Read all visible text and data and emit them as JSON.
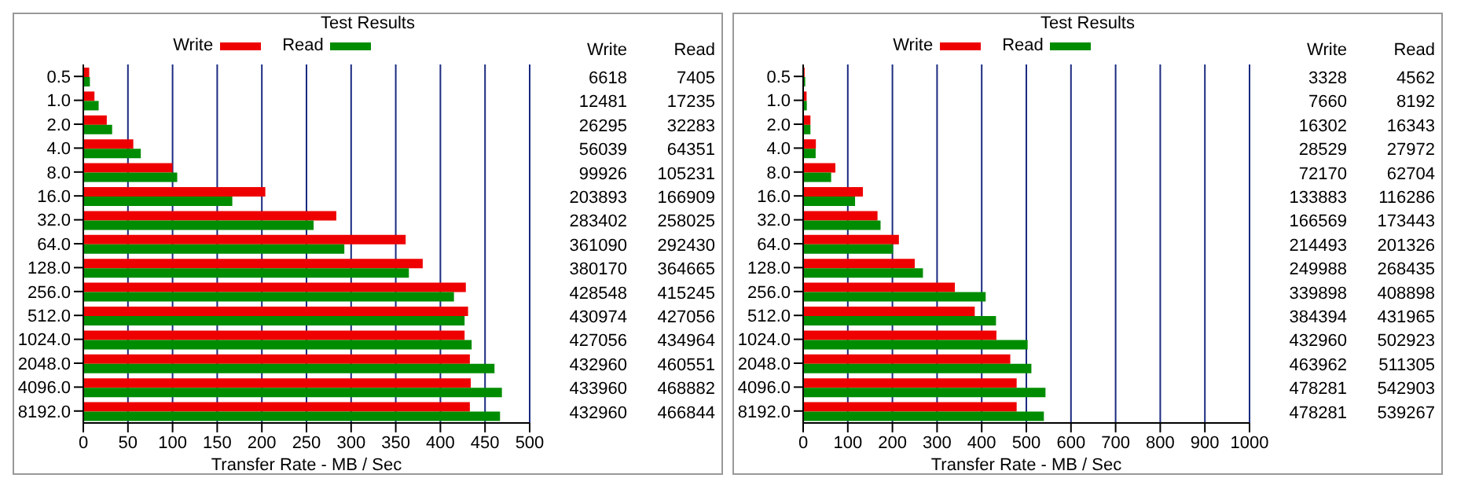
{
  "chart_data": [
    {
      "type": "bar",
      "orientation": "horizontal",
      "title": "Test Results",
      "xlabel": "Transfer Rate - MB / Sec",
      "categories": [
        "0.5",
        "1.0",
        "2.0",
        "4.0",
        "8.0",
        "16.0",
        "32.0",
        "64.0",
        "128.0",
        "256.0",
        "512.0",
        "1024.0",
        "2048.0",
        "4096.0",
        "8192.0"
      ],
      "xlim": [
        0,
        500
      ],
      "xticks": [
        0,
        50,
        100,
        150,
        200,
        250,
        300,
        350,
        400,
        450,
        500
      ],
      "grid": "x",
      "legend": "top",
      "annotations": [
        "6618",
        "7405",
        "12481",
        "17235",
        "26295",
        "32283",
        "56039",
        "64351",
        "99926",
        "105231",
        "203893",
        "166909",
        "283402",
        "258025",
        "361090",
        "292430",
        "380170",
        "364665",
        "428548",
        "415245",
        "430974",
        "427056",
        "427056",
        "434964",
        "432960",
        "460551",
        "433960",
        "468882",
        "432960",
        "466844"
      ],
      "series": [
        {
          "name": "Write",
          "color": "#ee0000",
          "values": [
            6.6,
            12.5,
            26.3,
            56.0,
            99.9,
            203.9,
            283.4,
            361.1,
            380.2,
            428.5,
            431.0,
            427.1,
            433.0,
            434.0,
            433.0
          ]
        },
        {
          "name": "Read",
          "color": "#008c00",
          "values": [
            7.4,
            17.2,
            32.3,
            64.4,
            105.2,
            166.9,
            258.0,
            292.4,
            364.7,
            415.2,
            427.1,
            435.0,
            460.6,
            468.9,
            466.8
          ]
        }
      ]
    },
    {
      "type": "bar",
      "orientation": "horizontal",
      "title": "Test Results",
      "xlabel": "Transfer Rate - MB / Sec",
      "categories": [
        "0.5",
        "1.0",
        "2.0",
        "4.0",
        "8.0",
        "16.0",
        "32.0",
        "64.0",
        "128.0",
        "256.0",
        "512.0",
        "1024.0",
        "2048.0",
        "4096.0",
        "8192.0"
      ],
      "xlim": [
        0,
        1000
      ],
      "xticks": [
        0,
        100,
        200,
        300,
        400,
        500,
        600,
        700,
        800,
        900,
        1000
      ],
      "grid": "x",
      "legend": "top",
      "annotations": [
        "3328",
        "4562",
        "7660",
        "8192",
        "16302",
        "16343",
        "28529",
        "27972",
        "72170",
        "62704",
        "133883",
        "116286",
        "166569",
        "173443",
        "214493",
        "201326",
        "249988",
        "268435",
        "339898",
        "408898",
        "384394",
        "431965",
        "432960",
        "502923",
        "463962",
        "511305",
        "478281",
        "542903",
        "478281",
        "539267"
      ],
      "series": [
        {
          "name": "Write",
          "color": "#ee0000",
          "values": [
            3.3,
            7.7,
            16.3,
            28.5,
            72.2,
            133.9,
            166.6,
            214.5,
            250.0,
            339.9,
            384.4,
            433.0,
            464.0,
            478.3,
            478.3
          ]
        },
        {
          "name": "Read",
          "color": "#008c00",
          "values": [
            4.6,
            8.2,
            16.3,
            28.0,
            62.7,
            116.3,
            173.4,
            201.3,
            268.4,
            408.9,
            432.0,
            502.9,
            511.3,
            542.9,
            539.3
          ]
        }
      ]
    }
  ]
}
